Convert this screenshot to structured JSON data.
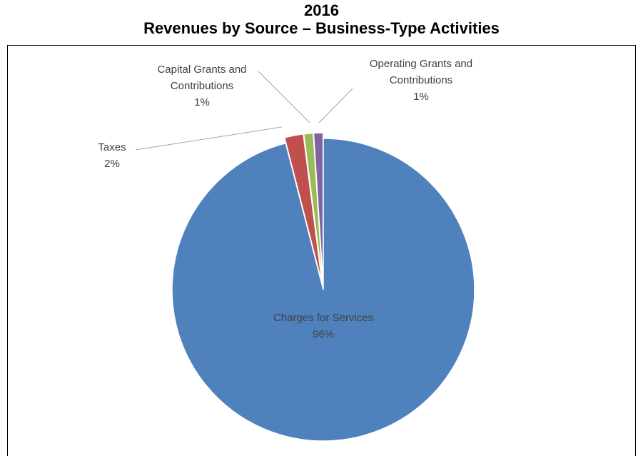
{
  "chart_data": {
    "type": "pie",
    "title": "2016",
    "subtitle": "Revenues by Source – Business-Type Activities",
    "categories": [
      "Charges for Services",
      "Taxes",
      "Capital Grants and Contributions",
      "Operating Grants and Contributions"
    ],
    "values": [
      96,
      2,
      1,
      1
    ],
    "value_labels": [
      "96%",
      "2%",
      "1%",
      "1%"
    ],
    "colors": [
      "#4f81bd",
      "#c0504d",
      "#9bbb59",
      "#8064a2"
    ]
  }
}
